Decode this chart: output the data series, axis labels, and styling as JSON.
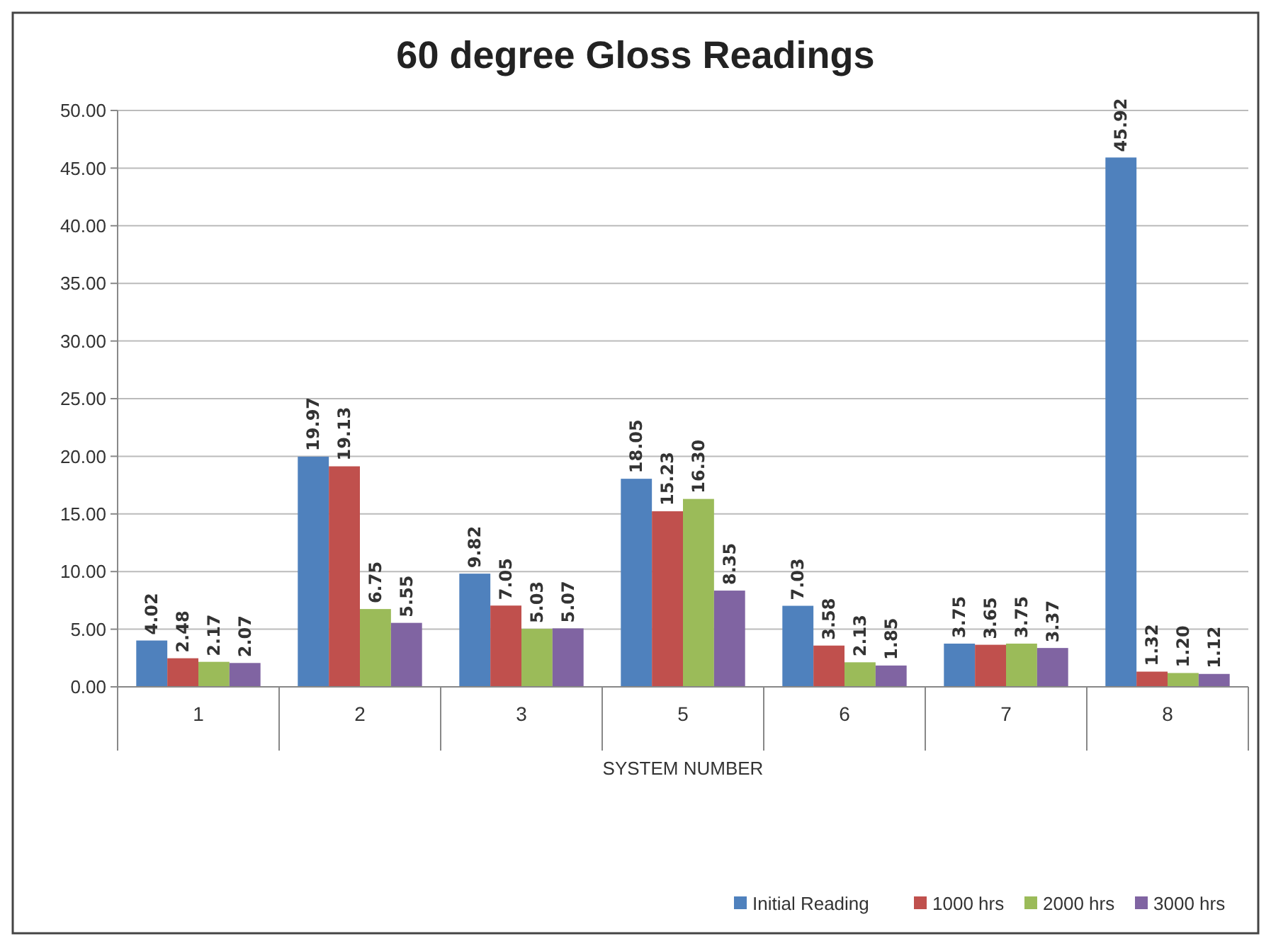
{
  "chart_data": {
    "type": "bar",
    "title": "60 degree Gloss Readings",
    "xlabel": "SYSTEM NUMBER",
    "categories": [
      "1",
      "2",
      "3",
      "5",
      "6",
      "7",
      "8"
    ],
    "series": [
      {
        "name": "Initial Reading",
        "color": "#4f81bd",
        "values": [
          4.02,
          19.97,
          9.82,
          18.05,
          7.03,
          3.75,
          45.92
        ],
        "value_labels": [
          "4.02",
          "19.97",
          "9.82",
          "18.05",
          "7.03",
          "3.75",
          "45.92"
        ]
      },
      {
        "name": "1000 hrs",
        "color": "#c0504d",
        "values": [
          2.48,
          19.13,
          7.05,
          15.23,
          3.58,
          3.65,
          1.32
        ],
        "value_labels": [
          "2.48",
          "19.13",
          "7.05",
          "15.23",
          "3.58",
          "3.65",
          "1.32"
        ]
      },
      {
        "name": "2000 hrs",
        "color": "#9bbb59",
        "values": [
          2.17,
          6.75,
          5.03,
          16.3,
          2.13,
          3.75,
          1.2
        ],
        "value_labels": [
          "2.17",
          "6.75",
          "5.03",
          "16.30",
          "2.13",
          "3.75",
          "1.20"
        ]
      },
      {
        "name": "3000 hrs",
        "color": "#8064a2",
        "values": [
          2.07,
          5.55,
          5.07,
          8.35,
          1.85,
          3.37,
          1.12
        ],
        "value_labels": [
          "2.07",
          "5.55",
          "5.07",
          "8.35",
          "1.85",
          "3.37",
          "1.12"
        ]
      }
    ],
    "ylim": [
      0,
      50
    ],
    "yticks": [
      {
        "value": 0,
        "label": "0.00"
      },
      {
        "value": 5,
        "label": "5.00"
      },
      {
        "value": 10,
        "label": "10.00"
      },
      {
        "value": 15,
        "label": "15.00"
      },
      {
        "value": 20,
        "label": "20.00"
      },
      {
        "value": 25,
        "label": "25.00"
      },
      {
        "value": 30,
        "label": "30.00"
      },
      {
        "value": 35,
        "label": "35.00"
      },
      {
        "value": 40,
        "label": "40.00"
      },
      {
        "value": 45,
        "label": "45.00"
      },
      {
        "value": 50,
        "label": "50.00"
      }
    ],
    "grid": "y",
    "legend": "bottom right"
  }
}
